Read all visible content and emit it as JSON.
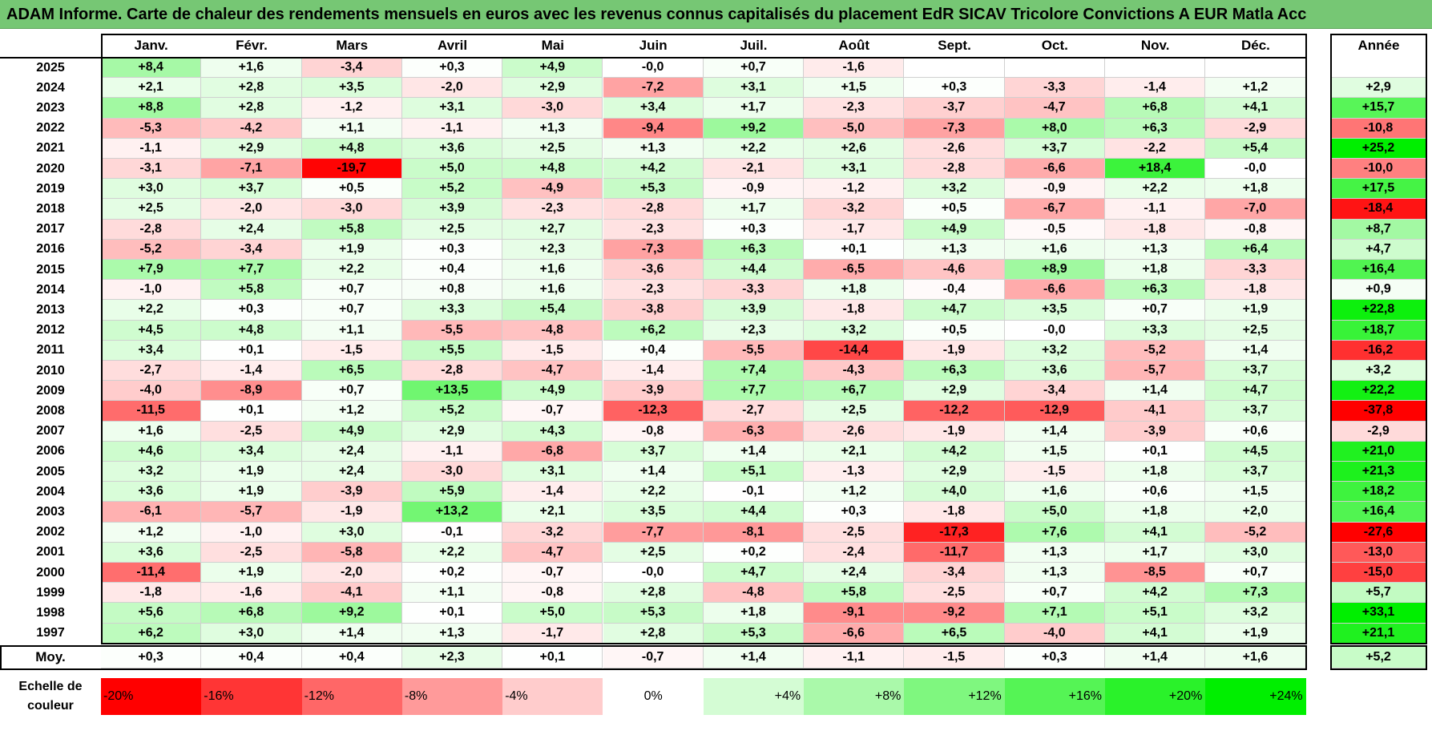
{
  "title": "ADAM Informe. Carte de chaleur des rendements mensuels en euros avec les revenus connus capitalisés du placement EdR SICAV Tricolore Convictions A EUR Matla Acc",
  "chart_data": {
    "type": "heatmap",
    "columns": [
      "Janv.",
      "Févr.",
      "Mars",
      "Avril",
      "Mai",
      "Juin",
      "Juil.",
      "Août",
      "Sept.",
      "Oct.",
      "Nov.",
      "Déc."
    ],
    "annual_header": "Année",
    "average_label": "Moy.",
    "rows": [
      {
        "year": "2025",
        "values": [
          "+8,4",
          "+1,6",
          "-3,4",
          "+0,3",
          "+4,9",
          "-0,0",
          "+0,7",
          "-1,6",
          "",
          "",
          "",
          ""
        ],
        "annual": ""
      },
      {
        "year": "2024",
        "values": [
          "+2,1",
          "+2,8",
          "+3,5",
          "-2,0",
          "+2,9",
          "-7,2",
          "+3,1",
          "+1,5",
          "+0,3",
          "-3,3",
          "-1,4",
          "+1,2"
        ],
        "annual": "+2,9"
      },
      {
        "year": "2023",
        "values": [
          "+8,8",
          "+2,8",
          "-1,2",
          "+3,1",
          "-3,0",
          "+3,4",
          "+1,7",
          "-2,3",
          "-3,7",
          "-4,7",
          "+6,8",
          "+4,1"
        ],
        "annual": "+15,7"
      },
      {
        "year": "2022",
        "values": [
          "-5,3",
          "-4,2",
          "+1,1",
          "-1,1",
          "+1,3",
          "-9,4",
          "+9,2",
          "-5,0",
          "-7,3",
          "+8,0",
          "+6,3",
          "-2,9"
        ],
        "annual": "-10,8"
      },
      {
        "year": "2021",
        "values": [
          "-1,1",
          "+2,9",
          "+4,8",
          "+3,6",
          "+2,5",
          "+1,3",
          "+2,2",
          "+2,6",
          "-2,6",
          "+3,7",
          "-2,2",
          "+5,4"
        ],
        "annual": "+25,2"
      },
      {
        "year": "2020",
        "values": [
          "-3,1",
          "-7,1",
          "-19,7",
          "+5,0",
          "+4,8",
          "+4,2",
          "-2,1",
          "+3,1",
          "-2,8",
          "-6,6",
          "+18,4",
          "-0,0"
        ],
        "annual": "-10,0"
      },
      {
        "year": "2019",
        "values": [
          "+3,0",
          "+3,7",
          "+0,5",
          "+5,2",
          "-4,9",
          "+5,3",
          "-0,9",
          "-1,2",
          "+3,2",
          "-0,9",
          "+2,2",
          "+1,8"
        ],
        "annual": "+17,5"
      },
      {
        "year": "2018",
        "values": [
          "+2,5",
          "-2,0",
          "-3,0",
          "+3,9",
          "-2,3",
          "-2,8",
          "+1,7",
          "-3,2",
          "+0,5",
          "-6,7",
          "-1,1",
          "-7,0"
        ],
        "annual": "-18,4"
      },
      {
        "year": "2017",
        "values": [
          "-2,8",
          "+2,4",
          "+5,8",
          "+2,5",
          "+2,7",
          "-2,3",
          "+0,3",
          "-1,7",
          "+4,9",
          "-0,5",
          "-1,8",
          "-0,8"
        ],
        "annual": "+8,7"
      },
      {
        "year": "2016",
        "values": [
          "-5,2",
          "-3,4",
          "+1,9",
          "+0,3",
          "+2,3",
          "-7,3",
          "+6,3",
          "+0,1",
          "+1,3",
          "+1,6",
          "+1,3",
          "+6,4"
        ],
        "annual": "+4,7"
      },
      {
        "year": "2015",
        "values": [
          "+7,9",
          "+7,7",
          "+2,2",
          "+0,4",
          "+1,6",
          "-3,6",
          "+4,4",
          "-6,5",
          "-4,6",
          "+8,9",
          "+1,8",
          "-3,3"
        ],
        "annual": "+16,4"
      },
      {
        "year": "2014",
        "values": [
          "-1,0",
          "+5,8",
          "+0,7",
          "+0,8",
          "+1,6",
          "-2,3",
          "-3,3",
          "+1,8",
          "-0,4",
          "-6,6",
          "+6,3",
          "-1,8"
        ],
        "annual": "+0,9"
      },
      {
        "year": "2013",
        "values": [
          "+2,2",
          "+0,3",
          "+0,7",
          "+3,3",
          "+5,4",
          "-3,8",
          "+3,9",
          "-1,8",
          "+4,7",
          "+3,5",
          "+0,7",
          "+1,9"
        ],
        "annual": "+22,8"
      },
      {
        "year": "2012",
        "values": [
          "+4,5",
          "+4,8",
          "+1,1",
          "-5,5",
          "-4,8",
          "+6,2",
          "+2,3",
          "+3,2",
          "+0,5",
          "-0,0",
          "+3,3",
          "+2,5"
        ],
        "annual": "+18,7"
      },
      {
        "year": "2011",
        "values": [
          "+3,4",
          "+0,1",
          "-1,5",
          "+5,5",
          "-1,5",
          "+0,4",
          "-5,5",
          "-14,4",
          "-1,9",
          "+3,2",
          "-5,2",
          "+1,4"
        ],
        "annual": "-16,2"
      },
      {
        "year": "2010",
        "values": [
          "-2,7",
          "-1,4",
          "+6,5",
          "-2,8",
          "-4,7",
          "-1,4",
          "+7,4",
          "-4,3",
          "+6,3",
          "+3,6",
          "-5,7",
          "+3,7"
        ],
        "annual": "+3,2"
      },
      {
        "year": "2009",
        "values": [
          "-4,0",
          "-8,9",
          "+0,7",
          "+13,5",
          "+4,9",
          "-3,9",
          "+7,7",
          "+6,7",
          "+2,9",
          "-3,4",
          "+1,4",
          "+4,7"
        ],
        "annual": "+22,2"
      },
      {
        "year": "2008",
        "values": [
          "-11,5",
          "+0,1",
          "+1,2",
          "+5,2",
          "-0,7",
          "-12,3",
          "-2,7",
          "+2,5",
          "-12,2",
          "-12,9",
          "-4,1",
          "+3,7"
        ],
        "annual": "-37,8"
      },
      {
        "year": "2007",
        "values": [
          "+1,6",
          "-2,5",
          "+4,9",
          "+2,9",
          "+4,3",
          "-0,8",
          "-6,3",
          "-2,6",
          "-1,9",
          "+1,4",
          "-3,9",
          "+0,6"
        ],
        "annual": "-2,9"
      },
      {
        "year": "2006",
        "values": [
          "+4,6",
          "+3,4",
          "+2,4",
          "-1,1",
          "-6,8",
          "+3,7",
          "+1,4",
          "+2,1",
          "+4,2",
          "+1,5",
          "+0,1",
          "+4,5"
        ],
        "annual": "+21,0"
      },
      {
        "year": "2005",
        "values": [
          "+3,2",
          "+1,9",
          "+2,4",
          "-3,0",
          "+3,1",
          "+1,4",
          "+5,1",
          "-1,3",
          "+2,9",
          "-1,5",
          "+1,8",
          "+3,7"
        ],
        "annual": "+21,3"
      },
      {
        "year": "2004",
        "values": [
          "+3,6",
          "+1,9",
          "-3,9",
          "+5,9",
          "-1,4",
          "+2,2",
          "-0,1",
          "+1,2",
          "+4,0",
          "+1,6",
          "+0,6",
          "+1,5"
        ],
        "annual": "+18,2"
      },
      {
        "year": "2003",
        "values": [
          "-6,1",
          "-5,7",
          "-1,9",
          "+13,2",
          "+2,1",
          "+3,5",
          "+4,4",
          "+0,3",
          "-1,8",
          "+5,0",
          "+1,8",
          "+2,0"
        ],
        "annual": "+16,4"
      },
      {
        "year": "2002",
        "values": [
          "+1,2",
          "-1,0",
          "+3,0",
          "-0,1",
          "-3,2",
          "-7,7",
          "-8,1",
          "-2,5",
          "-17,3",
          "+7,6",
          "+4,1",
          "-5,2"
        ],
        "annual": "-27,6"
      },
      {
        "year": "2001",
        "values": [
          "+3,6",
          "-2,5",
          "-5,8",
          "+2,2",
          "-4,7",
          "+2,5",
          "+0,2",
          "-2,4",
          "-11,7",
          "+1,3",
          "+1,7",
          "+3,0"
        ],
        "annual": "-13,0"
      },
      {
        "year": "2000",
        "values": [
          "-11,4",
          "+1,9",
          "-2,0",
          "+0,2",
          "-0,7",
          "-0,0",
          "+4,7",
          "+2,4",
          "-3,4",
          "+1,3",
          "-8,5",
          "+0,7"
        ],
        "annual": "-15,0"
      },
      {
        "year": "1999",
        "values": [
          "-1,8",
          "-1,6",
          "-4,1",
          "+1,1",
          "-0,8",
          "+2,8",
          "-4,8",
          "+5,8",
          "-2,5",
          "+0,7",
          "+4,2",
          "+7,3"
        ],
        "annual": "+5,7"
      },
      {
        "year": "1998",
        "values": [
          "+5,6",
          "+6,8",
          "+9,2",
          "+0,1",
          "+5,0",
          "+5,3",
          "+1,8",
          "-9,1",
          "-9,2",
          "+7,1",
          "+5,1",
          "+3,2"
        ],
        "annual": "+33,1"
      },
      {
        "year": "1997",
        "values": [
          "+6,2",
          "+3,0",
          "+1,4",
          "+1,3",
          "-1,7",
          "+2,8",
          "+5,3",
          "-6,6",
          "+6,5",
          "-4,0",
          "+4,1",
          "+1,9"
        ],
        "annual": "+21,1"
      }
    ],
    "averages": [
      "+0,3",
      "+0,4",
      "+0,4",
      "+2,3",
      "+0,1",
      "-0,7",
      "+1,4",
      "-1,1",
      "-1,5",
      "+0,3",
      "+1,4",
      "+1,6"
    ],
    "average_annual": "+5,2",
    "color_scale": {
      "label_line1": "Echelle de",
      "label_line2": "couleur",
      "stops": [
        {
          "label": "-20%",
          "value": -20,
          "color": "#ff0000"
        },
        {
          "label": "-16%",
          "value": -16,
          "color": "#ff3535"
        },
        {
          "label": "-12%",
          "value": -12,
          "color": "#ff6767"
        },
        {
          "label": "-8%",
          "value": -8,
          "color": "#ff9a9a"
        },
        {
          "label": "-4%",
          "value": -4,
          "color": "#ffcccc"
        },
        {
          "label": "0%",
          "value": 0,
          "color": "#ffffff"
        },
        {
          "label": "+4%",
          "value": 4,
          "color": "#d4fcd4"
        },
        {
          "label": "+8%",
          "value": 8,
          "color": "#aaf9aa"
        },
        {
          "label": "+12%",
          "value": 12,
          "color": "#7ff77f"
        },
        {
          "label": "+16%",
          "value": 16,
          "color": "#55f455"
        },
        {
          "label": "+20%",
          "value": 20,
          "color": "#2af22a"
        },
        {
          "label": "+24%",
          "value": 24,
          "color": "#00ef00"
        }
      ]
    }
  }
}
